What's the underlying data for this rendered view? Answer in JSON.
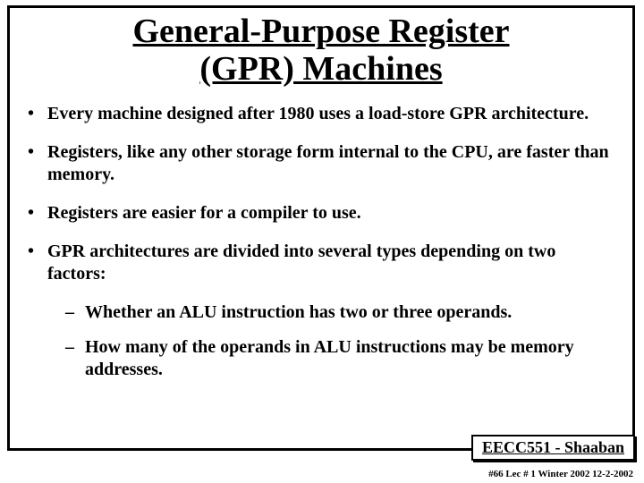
{
  "title_line1": "General-Purpose Register",
  "title_line2": "(GPR) Machines",
  "bullets": [
    "Every machine designed after 1980 uses a load-store GPR architecture.",
    "Registers, like any other storage form internal to the CPU, are faster than memory.",
    "Registers are easier for a compiler to use.",
    "GPR architectures are divided into several  types depending on two factors:"
  ],
  "subbullets": [
    "Whether an ALU instruction has two or three operands.",
    "How many of the operands in ALU instructions may be memory addresses."
  ],
  "course_label": "EECC551 - Shaaban",
  "footer": "#66  Lec # 1 Winter 2002  12-2-2002",
  "colors": {
    "text": "#000000",
    "bg": "#ffffff",
    "border": "#000000"
  }
}
